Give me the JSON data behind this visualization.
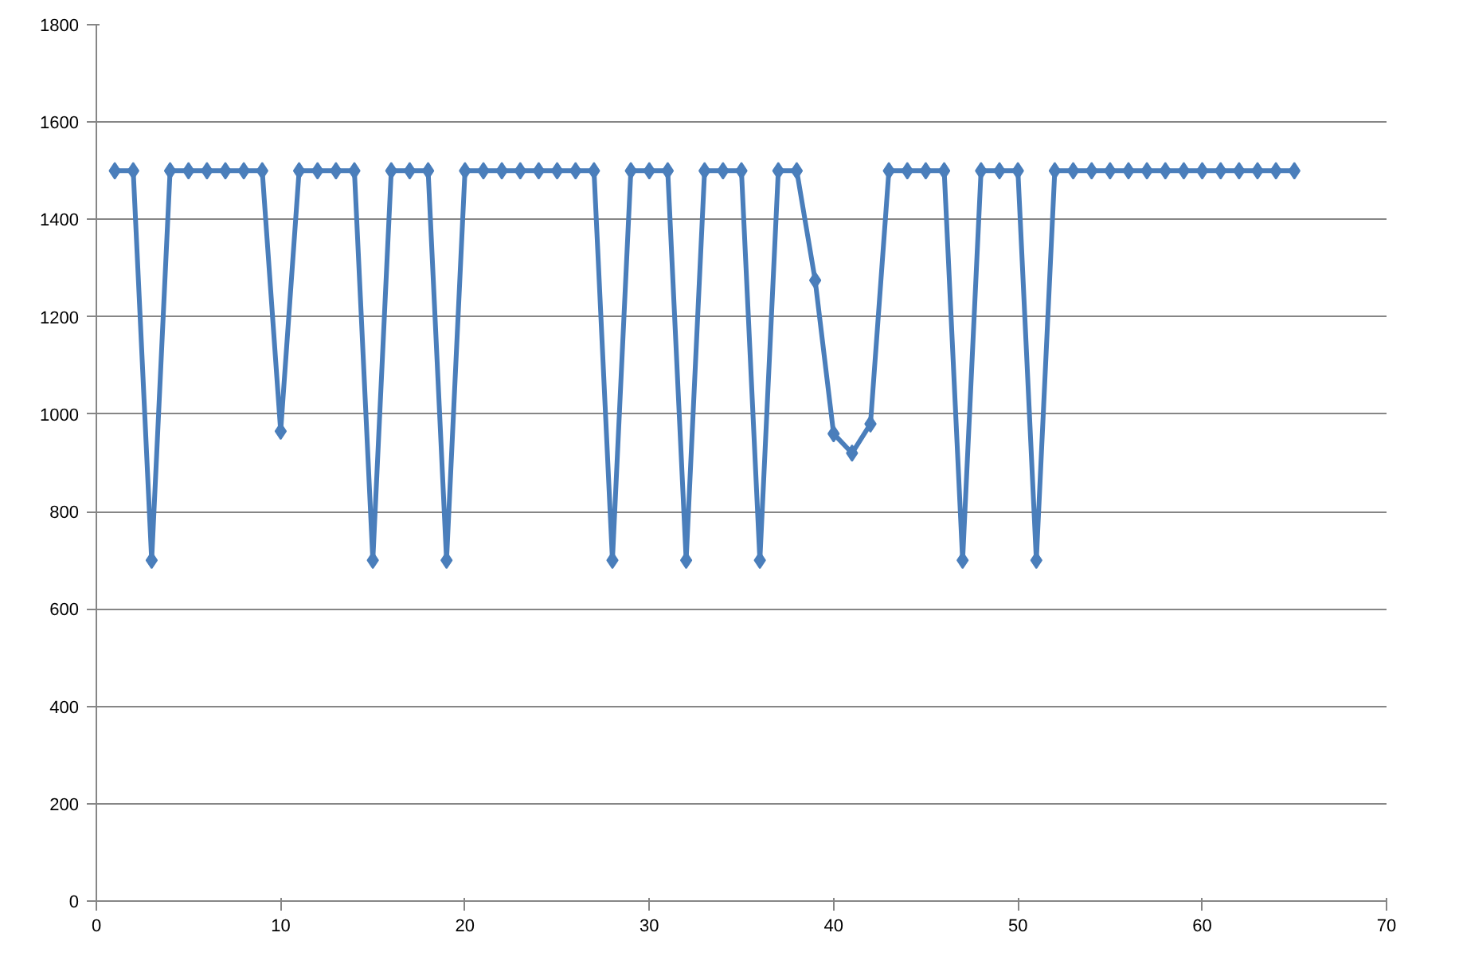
{
  "chart_data": {
    "type": "line",
    "x": [
      1,
      2,
      3,
      4,
      5,
      6,
      7,
      8,
      9,
      10,
      11,
      12,
      13,
      14,
      15,
      16,
      17,
      18,
      19,
      20,
      21,
      22,
      23,
      24,
      25,
      26,
      27,
      28,
      29,
      30,
      31,
      32,
      33,
      34,
      35,
      36,
      37,
      38,
      39,
      40,
      41,
      42,
      43,
      44,
      45,
      46,
      47,
      48,
      49,
      50,
      51,
      52,
      53,
      54,
      55,
      56,
      57,
      58,
      59,
      60,
      61,
      62,
      63,
      64,
      65
    ],
    "series": [
      {
        "color": "#4a7ebb",
        "values": [
          1500,
          1500,
          700,
          1500,
          1500,
          1500,
          1500,
          1500,
          1500,
          965,
          1500,
          1500,
          1500,
          1500,
          700,
          1500,
          1500,
          1500,
          700,
          1500,
          1500,
          1500,
          1500,
          1500,
          1500,
          1500,
          1500,
          700,
          1500,
          1500,
          1500,
          700,
          1500,
          1500,
          1500,
          700,
          1500,
          1500,
          1275,
          960,
          920,
          980,
          1500,
          1500,
          1500,
          1500,
          700,
          1500,
          1500,
          1500,
          700,
          1500,
          1500,
          1500,
          1500,
          1500,
          1500,
          1500,
          1500,
          1500,
          1500,
          1500,
          1500,
          1500,
          1500
        ]
      }
    ],
    "xlim": [
      0,
      70
    ],
    "xticks": [
      0,
      10,
      20,
      30,
      40,
      50,
      60,
      70
    ],
    "ylim": [
      0,
      1800
    ],
    "yticks": [
      0,
      200,
      400,
      600,
      800,
      1000,
      1200,
      1400,
      1600,
      1800
    ],
    "grid": "y",
    "marker": "diamond",
    "line_style": "solid"
  }
}
